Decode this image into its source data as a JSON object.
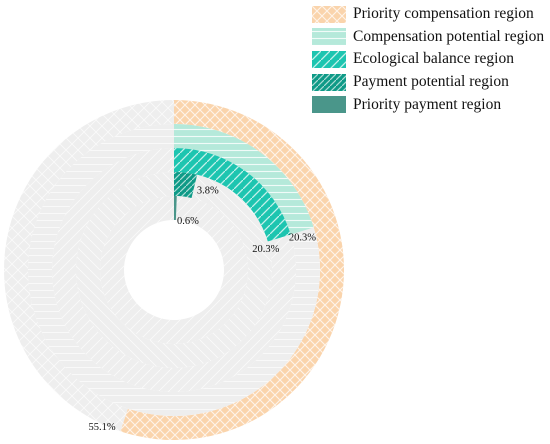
{
  "chart_data": {
    "type": "pie",
    "subtype": "nested-donut",
    "title": "",
    "series": [
      {
        "name": "Priority compensation region",
        "value_label": "55.1%",
        "value": 55.1,
        "color": "#fad4ac",
        "pattern": "crosshatch",
        "ring": 1
      },
      {
        "name": "Compensation potential region",
        "value_label": "20.3%",
        "value": 20.3,
        "color": "#b5e9da",
        "pattern": "horizontal",
        "ring": 2
      },
      {
        "name": "Ecological balance region",
        "value_label": "20.3%",
        "value": 20.3,
        "color": "#1dc5b0",
        "pattern": "diagonal",
        "ring": 3
      },
      {
        "name": "Payment potential region",
        "value_label": "3.8%",
        "value": 3.8,
        "color": "#0e9a87",
        "pattern": "diagonal-dense",
        "ring": 4
      },
      {
        "name": "Priority payment region",
        "value_label": "0.6%",
        "value": 0.6,
        "color": "#4a968a",
        "pattern": "solid",
        "ring": 5
      }
    ],
    "remainder_color": "#eeeeee",
    "start_angle": "12 o'clock",
    "direction": "clockwise",
    "legend_position": "top-right"
  }
}
